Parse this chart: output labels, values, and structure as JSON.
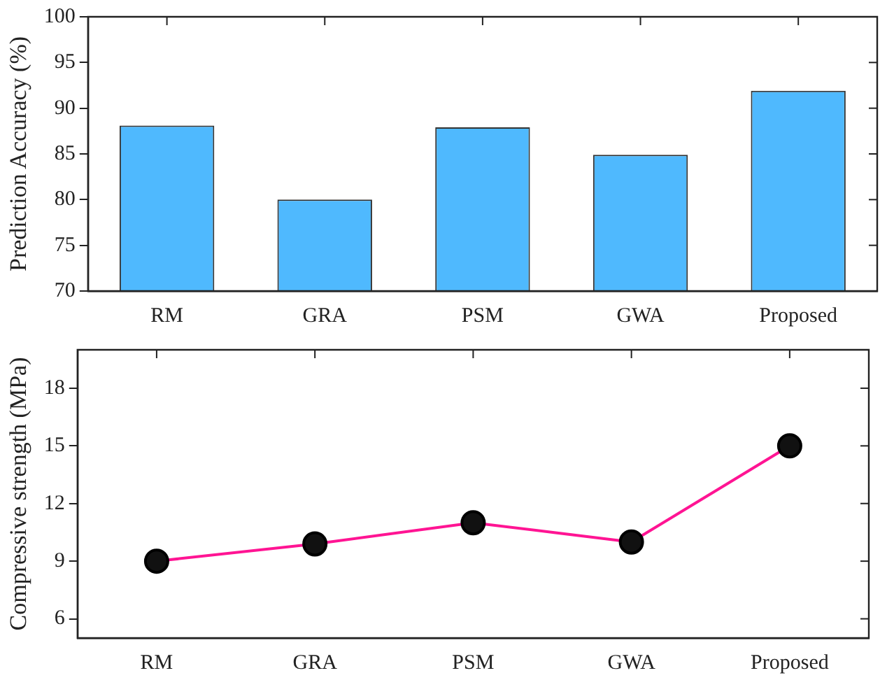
{
  "chart_data": [
    {
      "type": "bar",
      "ylabel": "Prediction Accuracy (%)",
      "categories": [
        "RM",
        "GRA",
        "PSM",
        "GWA",
        "Proposed"
      ],
      "values": [
        88.1,
        80,
        87.9,
        84.9,
        91.9
      ],
      "color": "#4fb9fe",
      "ylim": [
        70,
        100
      ],
      "yticks": [
        70,
        75,
        80,
        85,
        90,
        95,
        100
      ],
      "grid": false,
      "legend": false
    },
    {
      "type": "line",
      "ylabel": "Compressive strength (MPa)",
      "categories": [
        "RM",
        "GRA",
        "PSM",
        "GWA",
        "Proposed"
      ],
      "values": [
        9,
        9.9,
        11,
        10,
        15
      ],
      "color": "#ff1493",
      "marker": "circle",
      "line_style": "solid",
      "ylim": [
        5,
        20
      ],
      "yticks": [
        6,
        9,
        12,
        15,
        18
      ],
      "grid": false,
      "legend": false
    }
  ]
}
